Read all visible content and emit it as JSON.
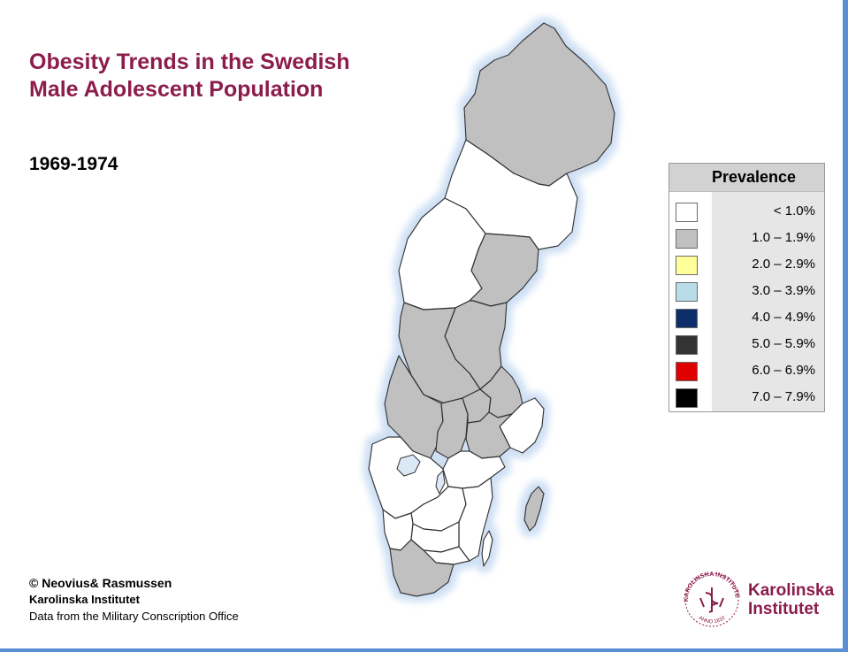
{
  "header": {
    "title_line1": "Obesity Trends in the Swedish",
    "title_line2": "Male Adolescent Population",
    "period": "1969-1974"
  },
  "legend": {
    "title": "Prevalence",
    "items": [
      {
        "label": "< 1.0%",
        "color": "#ffffff"
      },
      {
        "label": "1.0 – 1.9%",
        "color": "#c0c0c0"
      },
      {
        "label": "2.0 – 2.9%",
        "color": "#ffff99"
      },
      {
        "label": "3.0 – 3.9%",
        "color": "#b8dde8"
      },
      {
        "label": "4.0 – 4.9%",
        "color": "#0d2d6b"
      },
      {
        "label": "5.0 – 5.9%",
        "color": "#333333"
      },
      {
        "label": "6.0 – 6.9%",
        "color": "#e00000"
      },
      {
        "label": "7.0 – 7.9%",
        "color": "#000000"
      }
    ]
  },
  "credits": {
    "line1": "© Neovius& Rasmussen",
    "line2": "Karolinska Institutet",
    "line3": "Data from the Military Conscription Office"
  },
  "logo": {
    "name_line1": "Karolinska",
    "name_line2": "Institutet",
    "seal_top_text": "KAROLINSKA INSTITUTET",
    "seal_bottom_text": "ANNO 1810",
    "brand_color": "#8c1c4a"
  },
  "map": {
    "colors": {
      "low": "#ffffff",
      "mid": "#c0c0c0",
      "outline": "#333333",
      "water_halo": "#dbe8f6"
    },
    "regions": [
      {
        "region": "Norrbotten",
        "category": "1.0 – 1.9%"
      },
      {
        "region": "Västerbotten",
        "category": "< 1.0%"
      },
      {
        "region": "Jämtland",
        "category": "< 1.0%"
      },
      {
        "region": "Västernorrland",
        "category": "1.0 – 1.9%"
      },
      {
        "region": "Gävleborg",
        "category": "1.0 – 1.9%"
      },
      {
        "region": "Dalarna",
        "category": "1.0 – 1.9%"
      },
      {
        "region": "Värmland",
        "category": "1.0 – 1.9%"
      },
      {
        "region": "Örebro",
        "category": "1.0 – 1.9%"
      },
      {
        "region": "Västmanland",
        "category": "1.0 – 1.9%"
      },
      {
        "region": "Uppsala",
        "category": "1.0 – 1.9%"
      },
      {
        "region": "Stockholm",
        "category": "< 1.0%"
      },
      {
        "region": "Södermanland",
        "category": "1.0 – 1.9%"
      },
      {
        "region": "Östergötland",
        "category": "< 1.0%"
      },
      {
        "region": "Västra Götaland",
        "category": "< 1.0%"
      },
      {
        "region": "Jönköping",
        "category": "< 1.0%"
      },
      {
        "region": "Kalmar",
        "category": "< 1.0%"
      },
      {
        "region": "Kronoberg",
        "category": "< 1.0%"
      },
      {
        "region": "Halland",
        "category": "< 1.0%"
      },
      {
        "region": "Blekinge",
        "category": "< 1.0%"
      },
      {
        "region": "Skåne",
        "category": "1.0 – 1.9%"
      },
      {
        "region": "Gotland",
        "category": "1.0 – 1.9%"
      }
    ]
  }
}
